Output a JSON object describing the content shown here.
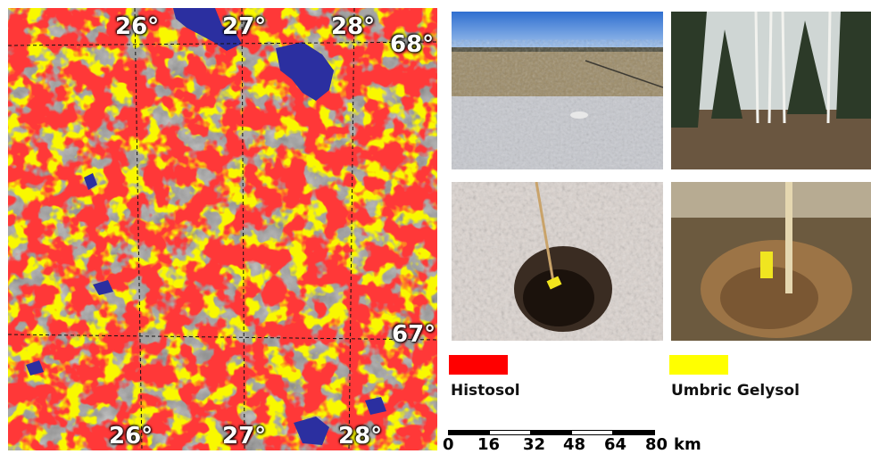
{
  "map": {
    "lon_labels_top": [
      "26°",
      "27°",
      "28°"
    ],
    "lon_labels_bottom": [
      "26°",
      "27°",
      "28°"
    ],
    "lat_labels": [
      "68°",
      "67°"
    ],
    "colors": {
      "histosol": "#ff0a0a",
      "gelysol": "#f0f000",
      "water": "#2b2fa0",
      "terrain": "#9a9a9a"
    }
  },
  "legend": {
    "items": [
      {
        "label": "Histosol",
        "color": "#ff0000"
      },
      {
        "label": "Umbric Gelysol",
        "color": "#ffff00"
      }
    ]
  },
  "scale": {
    "ticks": [
      "0",
      "16",
      "32",
      "48",
      "64",
      "80"
    ],
    "unit": "km"
  },
  "photos": [
    {
      "subject": "open bog landscape"
    },
    {
      "subject": "forest with birch trees"
    },
    {
      "subject": "soil pit with snow"
    },
    {
      "subject": "soil pit with measuring stick"
    }
  ]
}
